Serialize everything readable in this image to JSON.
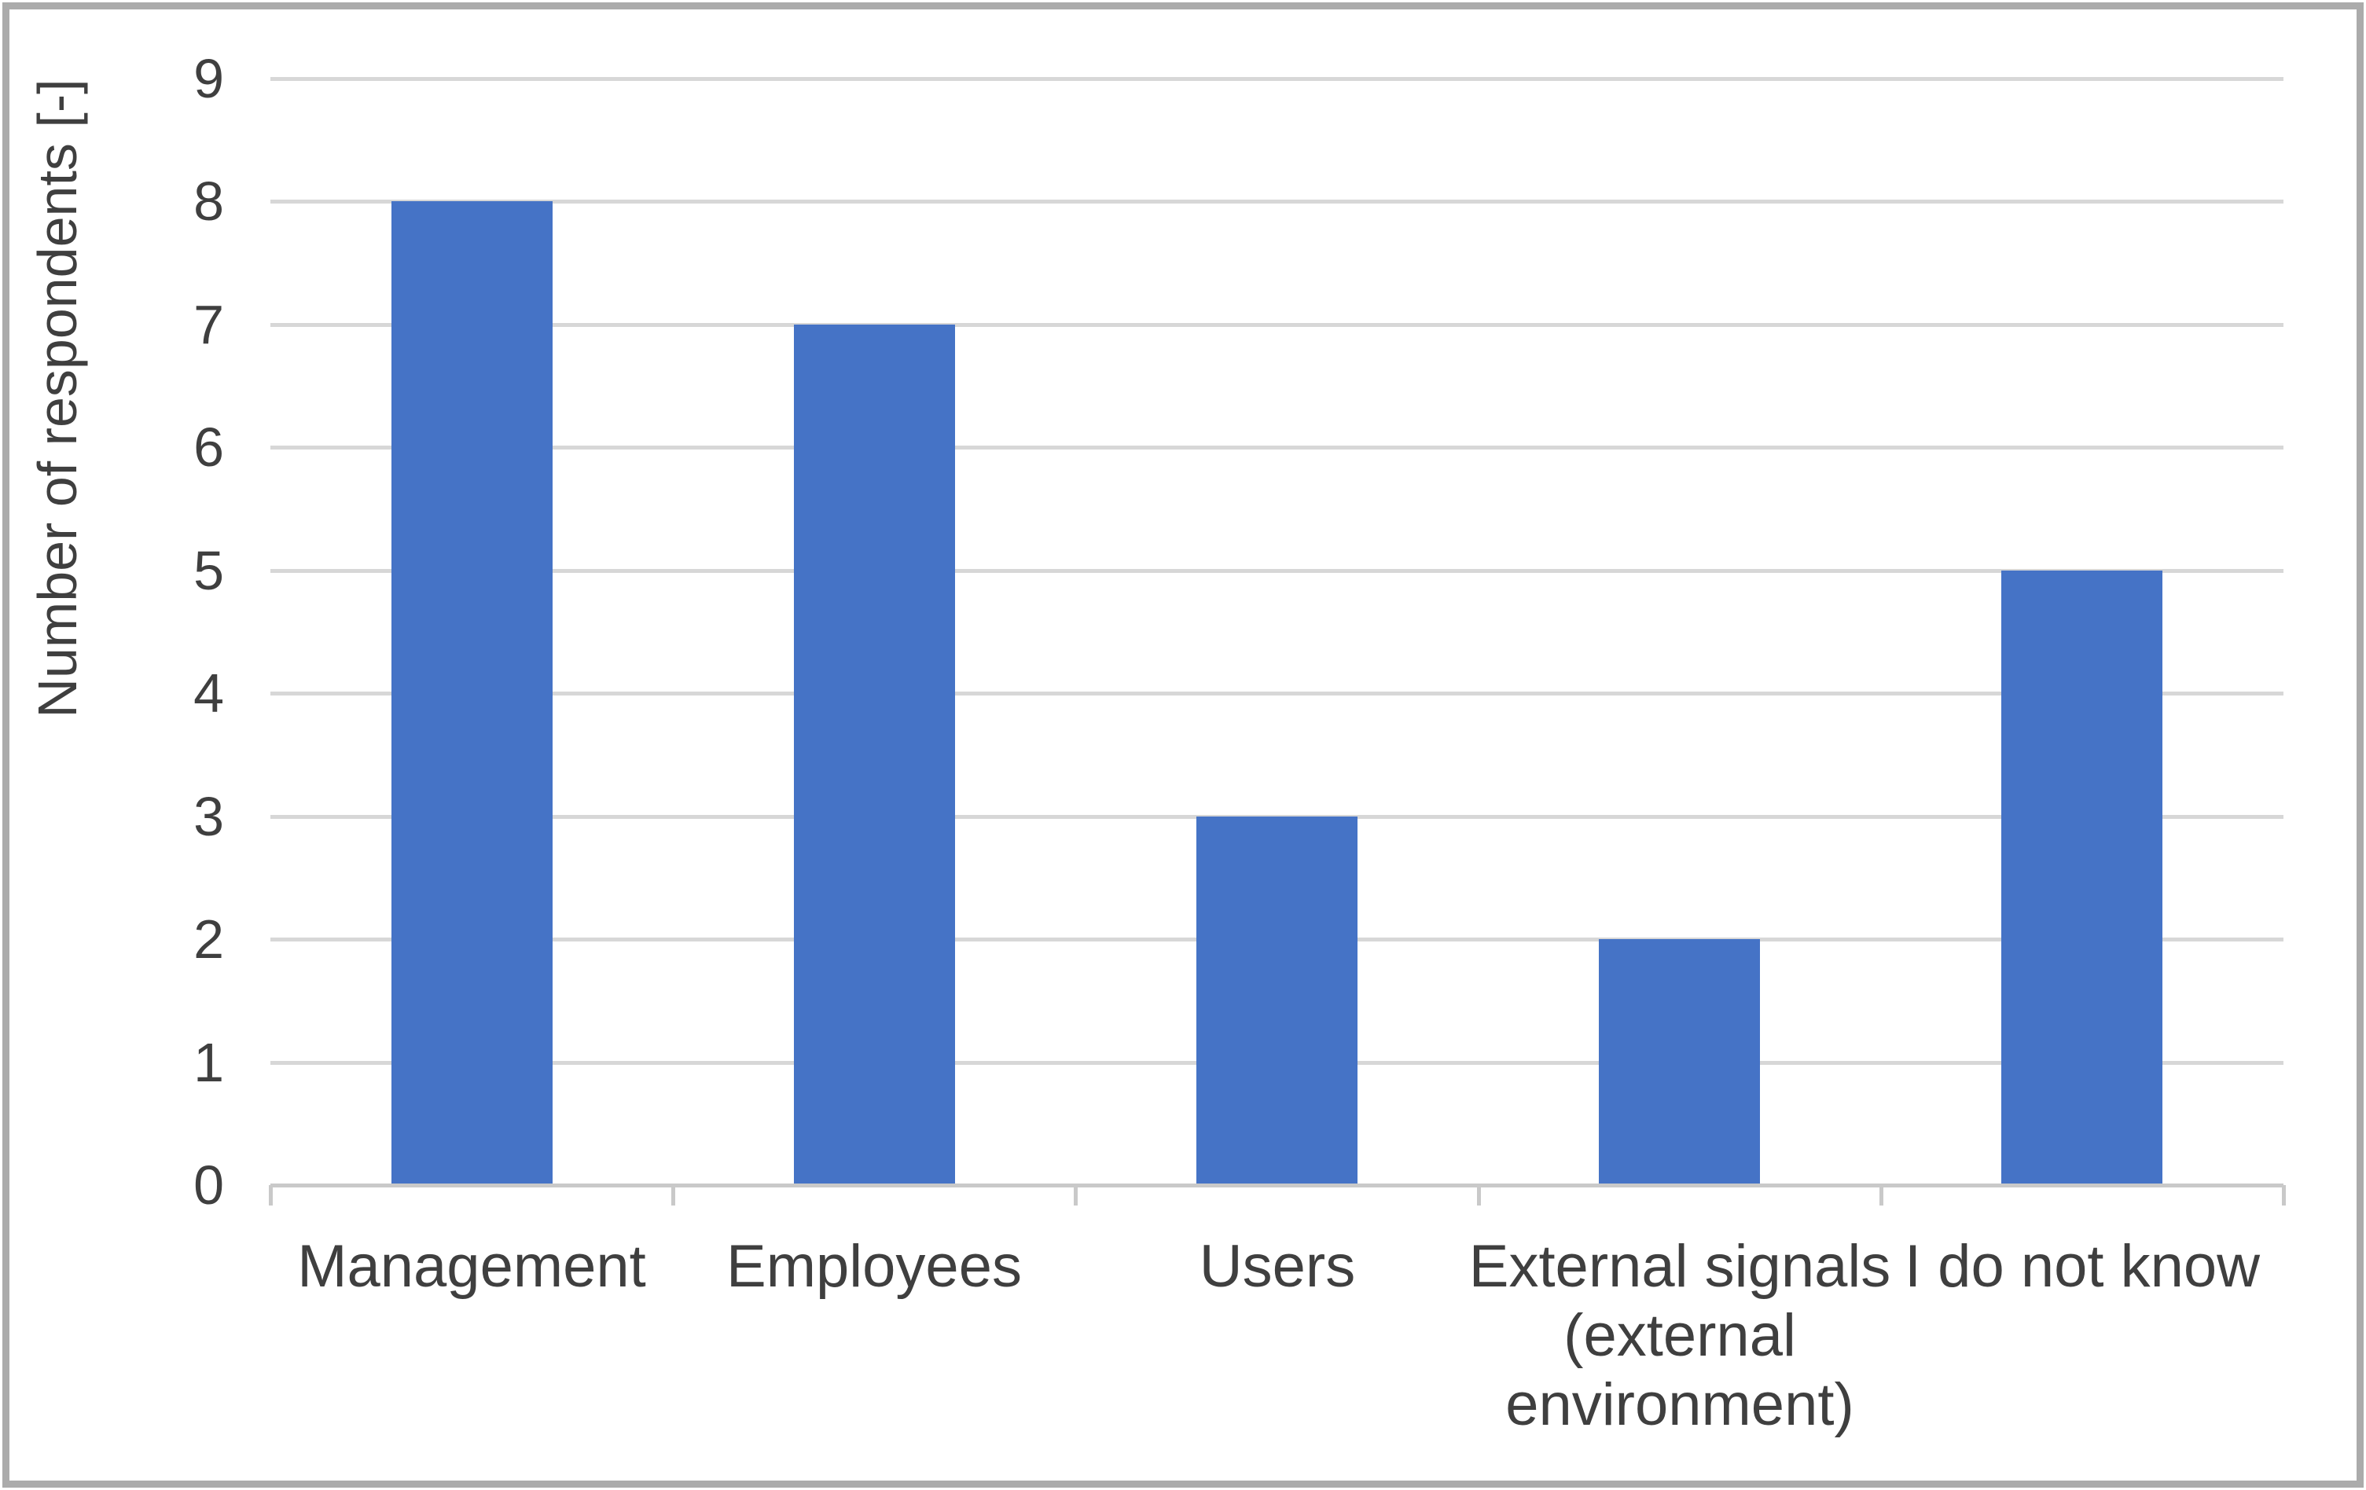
{
  "figure": {
    "background": "#FFFFFF",
    "frame_color": "#ABABAB"
  },
  "chart_data": {
    "type": "bar",
    "title": "",
    "xlabel": "",
    "ylabel": "Number of respondents [-]",
    "categories": [
      "Management",
      "Employees",
      "Users",
      "External signals (external environment)",
      "I do not know"
    ],
    "categories_display_lines": [
      [
        "Management"
      ],
      [
        "Employees"
      ],
      [
        "Users"
      ],
      [
        "External signals",
        "(external",
        "environment)"
      ],
      [
        "I do not know"
      ]
    ],
    "values": [
      8,
      7,
      3,
      2,
      5
    ],
    "ylim": [
      0,
      9
    ],
    "ytick_step": 1,
    "yticks": [
      0,
      1,
      2,
      3,
      4,
      5,
      6,
      7,
      8,
      9
    ],
    "grid": true,
    "legend": false,
    "bar_color": "#4573C6",
    "gridline_color": "#D7D7D7",
    "axis_color": "#C9C9C9",
    "text_color": "#3F3F3F"
  }
}
